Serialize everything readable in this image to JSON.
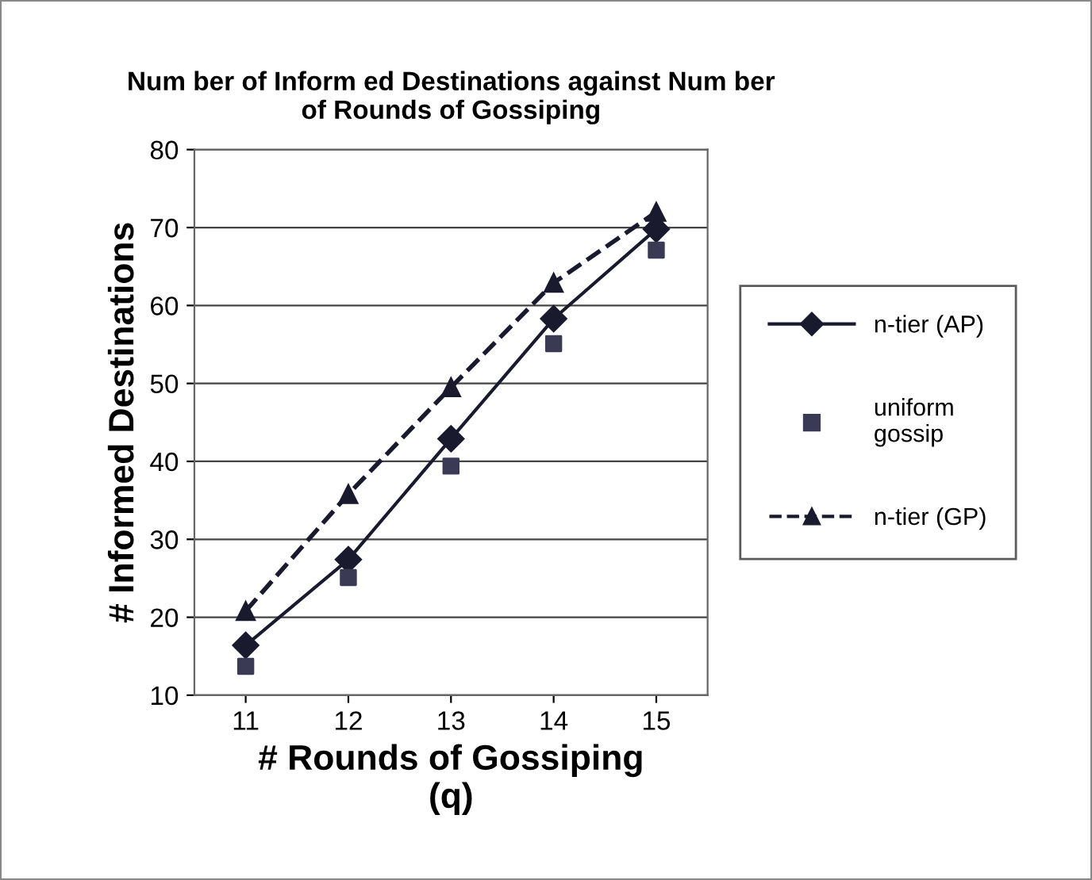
{
  "chart_data": {
    "type": "line",
    "title": "Num ber of Inform ed Destinations against Num ber\nof Rounds of Gossiping",
    "xlabel": "# Rounds of Gossiping\n(q)",
    "ylabel": "# Informed Destinations",
    "categories": [
      "11",
      "12",
      "13",
      "14",
      "15"
    ],
    "series": [
      {
        "name": "n-tier (AP)",
        "color": "#1a1a2e",
        "marker": "diamond",
        "line_style": "solid",
        "values": [
          16.4,
          27.4,
          42.9,
          58.3,
          69.8
        ]
      },
      {
        "name": "uniform\ngossip",
        "type": "scatter",
        "color": "#3a3a55",
        "marker": "square",
        "values": [
          13.7,
          25.1,
          39.4,
          55.1,
          67.1
        ]
      },
      {
        "name": "n-tier (GP)",
        "color": "#1a1a2e",
        "marker": "triangle",
        "line_style": "dashed",
        "values": [
          20.8,
          35.8,
          49.5,
          62.9,
          72.0
        ]
      }
    ],
    "ylim": [
      10,
      80
    ],
    "yticks": [
      10,
      20,
      30,
      40,
      50,
      60,
      70,
      80
    ],
    "grid": "y",
    "legend": "right"
  }
}
